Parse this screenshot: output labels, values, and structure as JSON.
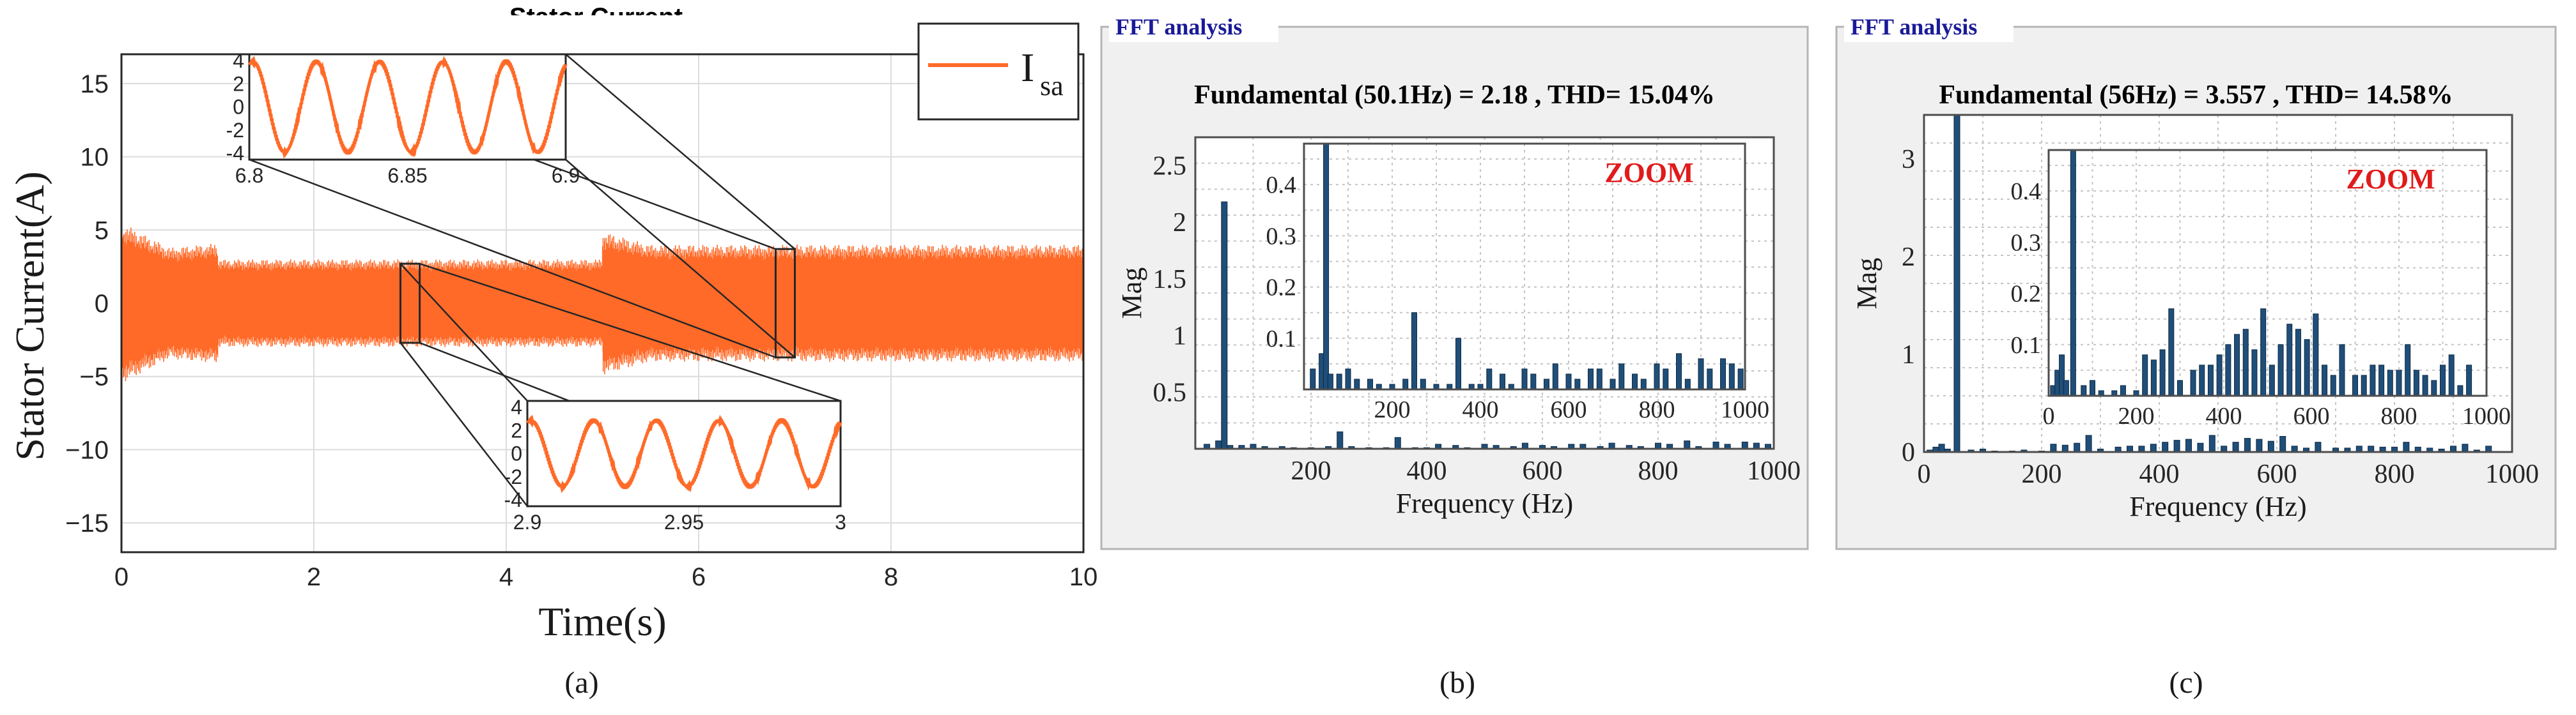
{
  "colors": {
    "signal": "#ff6a28",
    "bar": "#1f4e79",
    "fft_label": "#1a1a99",
    "zoom": "#e01b1b"
  },
  "chart_data": [
    {
      "type": "line",
      "id": "a",
      "title": "Stator Current",
      "xlabel": "Time(s)",
      "ylabel": "Stator Current(A)",
      "legend": "I",
      "legend_sub": "sa",
      "caption": "(a)",
      "xlim": [
        0,
        10
      ],
      "ylim": [
        -17,
        17
      ],
      "xticks": [
        0,
        2,
        4,
        6,
        8,
        10
      ],
      "yticks": [
        15,
        10,
        5,
        0,
        -5,
        -10,
        -15
      ],
      "segments": [
        {
          "t0": 0,
          "t1": 0.5,
          "amplitude_start": 5.5,
          "amplitude_end": 3.8
        },
        {
          "t0": 0.5,
          "t1": 1.0,
          "amplitude_start": 3.8,
          "amplitude_end": 4.1
        },
        {
          "t0": 1.0,
          "t1": 5.0,
          "amplitude_start": 3.0,
          "amplitude_end": 3.0
        },
        {
          "t0": 5.0,
          "t1": 5.5,
          "amplitude_start": 4.9,
          "amplitude_end": 4.0
        },
        {
          "t0": 5.5,
          "t1": 10.0,
          "amplitude_start": 4.0,
          "amplitude_end": 4.0
        }
      ],
      "insets": [
        {
          "name": "zoom-top",
          "xlim": [
            6.8,
            6.9
          ],
          "xticks": [
            "6.8",
            "6.85",
            "6.9"
          ],
          "yticks": [
            "4",
            "2",
            "0",
            "-2",
            "-4"
          ],
          "cycles": 5,
          "amplitude": 3.7,
          "window": [
            6.8,
            7.0
          ]
        },
        {
          "name": "zoom-bottom",
          "xlim": [
            2.9,
            3.0
          ],
          "xticks": [
            "2.9",
            "2.95",
            "3"
          ],
          "yticks": [
            "4",
            "2",
            "0",
            "-2",
            "-4"
          ],
          "cycles": 5,
          "amplitude": 2.7,
          "window": [
            2.9,
            3.1
          ]
        }
      ]
    },
    {
      "type": "bar",
      "id": "b",
      "panel_label": "FFT analysis",
      "title": "Fundamental (50.1Hz) = 2.18 , THD= 15.04%",
      "xlabel": "Frequency (Hz)",
      "ylabel": "Mag",
      "caption": "(b)",
      "xlim": [
        0,
        1000
      ],
      "ylim": [
        0,
        2.75
      ],
      "xticks": [
        200,
        400,
        600,
        800,
        1000
      ],
      "yticks": [
        0.5,
        1,
        1.5,
        2,
        2.5
      ],
      "zoom_label": "ZOOM",
      "zoom_xlim": [
        0,
        1000
      ],
      "zoom_ylim": [
        0,
        0.48
      ],
      "zoom_xticks": [
        200,
        400,
        600,
        800,
        1000
      ],
      "zoom_yticks": [
        0.1,
        0.2,
        0.3,
        0.4
      ],
      "frequencies": [
        20,
        40,
        50.1,
        60,
        80,
        100,
        120,
        150,
        170,
        200,
        230,
        250,
        270,
        300,
        330,
        350,
        380,
        400,
        420,
        450,
        470,
        500,
        520,
        550,
        570,
        600,
        620,
        650,
        670,
        700,
        720,
        750,
        770,
        800,
        820,
        850,
        870,
        900,
        920,
        950,
        970,
        990
      ],
      "magnitudes": [
        0.04,
        0.07,
        2.18,
        0.03,
        0.03,
        0.04,
        0.02,
        0.02,
        0.01,
        0.01,
        0.02,
        0.15,
        0.02,
        0.01,
        0.01,
        0.1,
        0.01,
        0.01,
        0.04,
        0.03,
        0.01,
        0.04,
        0.03,
        0.02,
        0.05,
        0.03,
        0.02,
        0.04,
        0.04,
        0.02,
        0.05,
        0.03,
        0.02,
        0.05,
        0.04,
        0.07,
        0.02,
        0.06,
        0.04,
        0.06,
        0.05,
        0.04
      ]
    },
    {
      "type": "bar",
      "id": "c",
      "panel_label": "FFT analysis",
      "title": "Fundamental (56Hz) = 3.557 , THD= 14.58%",
      "xlabel": "Frequency (Hz)",
      "ylabel": "Mag",
      "caption": "(c)",
      "xlim": [
        0,
        1000
      ],
      "ylim": [
        0,
        3.45
      ],
      "xticks": [
        0,
        200,
        400,
        600,
        800,
        1000
      ],
      "yticks": [
        0,
        1,
        2,
        3
      ],
      "zoom_label": "ZOOM",
      "zoom_xlim": [
        0,
        1000
      ],
      "zoom_ylim": [
        0,
        0.48
      ],
      "zoom_xticks": [
        0,
        200,
        400,
        600,
        800,
        1000
      ],
      "zoom_yticks": [
        0.1,
        0.2,
        0.3,
        0.4
      ],
      "frequencies": [
        10,
        20,
        30,
        40,
        56,
        80,
        100,
        120,
        150,
        170,
        200,
        220,
        240,
        260,
        280,
        300,
        330,
        350,
        370,
        390,
        410,
        430,
        450,
        470,
        490,
        510,
        530,
        550,
        570,
        590,
        610,
        630,
        650,
        670,
        700,
        720,
        740,
        760,
        780,
        800,
        820,
        840,
        860,
        880,
        900,
        920,
        940,
        960
      ],
      "magnitudes": [
        0.02,
        0.05,
        0.08,
        0.03,
        3.557,
        0.02,
        0.03,
        0.01,
        0.01,
        0.02,
        0.01,
        0.08,
        0.07,
        0.09,
        0.17,
        0.03,
        0.05,
        0.06,
        0.06,
        0.08,
        0.1,
        0.12,
        0.13,
        0.09,
        0.17,
        0.06,
        0.1,
        0.14,
        0.13,
        0.11,
        0.16,
        0.06,
        0.04,
        0.1,
        0.04,
        0.04,
        0.06,
        0.06,
        0.05,
        0.05,
        0.1,
        0.05,
        0.04,
        0.03,
        0.06,
        0.08,
        0.02,
        0.06
      ]
    }
  ]
}
